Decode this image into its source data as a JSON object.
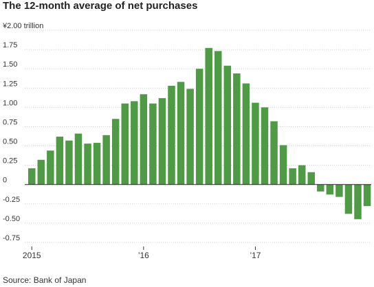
{
  "title": "The 12-month average of net purchases",
  "source": "Source: Bank of Japan",
  "colors": {
    "bar": "#4f9a45",
    "grid": "#cccccc",
    "zero": "#222222",
    "text": "#333333"
  },
  "chart_data": {
    "type": "bar",
    "unit_label": "¥2.00 trillion",
    "ylim": [
      -0.75,
      2.0
    ],
    "yticks": [
      {
        "value": 2.0,
        "label": "¥2.00 trillion"
      },
      {
        "value": 1.75,
        "label": "1.75"
      },
      {
        "value": 1.5,
        "label": "1.50"
      },
      {
        "value": 1.25,
        "label": "1.25"
      },
      {
        "value": 1.0,
        "label": "1.00"
      },
      {
        "value": 0.75,
        "label": "0.75"
      },
      {
        "value": 0.5,
        "label": "0.50"
      },
      {
        "value": 0.25,
        "label": "0.25"
      },
      {
        "value": 0,
        "label": "0"
      },
      {
        "value": -0.25,
        "label": "-0.25"
      },
      {
        "value": -0.5,
        "label": "-0.50"
      },
      {
        "value": -0.75,
        "label": "-0.75"
      }
    ],
    "xticks": [
      {
        "index": 0,
        "label": "2015"
      },
      {
        "index": 12,
        "label": "’16"
      },
      {
        "index": 24,
        "label": "’17"
      }
    ],
    "values": [
      0.21,
      0.32,
      0.44,
      0.62,
      0.57,
      0.66,
      0.53,
      0.54,
      0.64,
      0.85,
      1.05,
      1.08,
      1.17,
      1.05,
      1.12,
      1.28,
      1.33,
      1.24,
      1.5,
      1.77,
      1.73,
      1.54,
      1.44,
      1.31,
      1.06,
      1.0,
      0.82,
      0.51,
      0.21,
      0.25,
      0.16,
      -0.09,
      -0.13,
      -0.16,
      -0.38,
      -0.45,
      -0.28
    ],
    "grid": true,
    "legend": "none"
  }
}
